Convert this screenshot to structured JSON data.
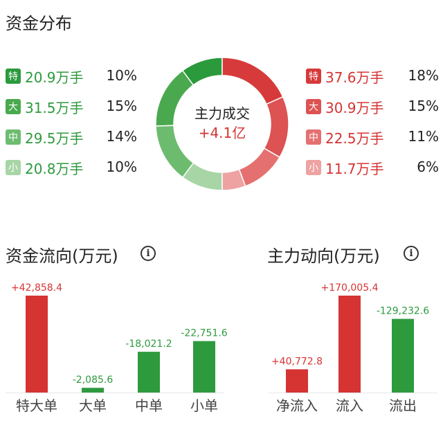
{
  "distribution": {
    "title": "资金分布",
    "center_label": "主力成交",
    "center_value": "+4.1亿",
    "outflow": [
      {
        "badge": "特",
        "amount": "20.9万手",
        "pct": "10%",
        "color": "#2a9a3c"
      },
      {
        "badge": "大",
        "amount": "31.5万手",
        "pct": "15%",
        "color": "#4aa94e"
      },
      {
        "badge": "中",
        "amount": "29.5万手",
        "pct": "14%",
        "color": "#6dbb6f"
      },
      {
        "badge": "小",
        "amount": "20.8万手",
        "pct": "10%",
        "color": "#a8d5a6"
      }
    ],
    "inflow": [
      {
        "badge": "特",
        "amount": "37.6万手",
        "pct": "18%",
        "color": "#d63a3a"
      },
      {
        "badge": "大",
        "amount": "30.9万手",
        "pct": "15%",
        "color": "#dd5252"
      },
      {
        "badge": "中",
        "amount": "22.5万手",
        "pct": "11%",
        "color": "#e57070"
      },
      {
        "badge": "小",
        "amount": "11.7万手",
        "pct": "6%",
        "color": "#eea2a2"
      }
    ]
  },
  "chart_data": [
    {
      "type": "pie",
      "title": "资金分布",
      "categories": [
        "特",
        "大",
        "中",
        "小",
        "小",
        "中",
        "大",
        "特"
      ],
      "values": [
        37.6,
        30.9,
        22.5,
        11.7,
        20.8,
        29.5,
        31.5,
        20.9
      ],
      "colors": [
        "#d63a3a",
        "#dd5252",
        "#e57070",
        "#eea2a2",
        "#a8d5a6",
        "#6dbb6f",
        "#4aa94e",
        "#2a9a3c"
      ]
    },
    {
      "type": "bar",
      "title": "资金流向(万元)",
      "categories": [
        "特大单",
        "大单",
        "中单",
        "小单"
      ],
      "values": [
        42858.4,
        -2085.6,
        -18021.2,
        -22751.6
      ],
      "labels": [
        "+42,858.4",
        "-2,085.6",
        "-18,021.2",
        "-22,751.6"
      ],
      "colors": [
        "#d63333",
        "#2e9a3e",
        "#2e9a3e",
        "#2e9a3e"
      ]
    },
    {
      "type": "bar",
      "title": "主力动向(万元)",
      "categories": [
        "净流入",
        "流入",
        "流出"
      ],
      "values": [
        40772.8,
        170005.4,
        -129232.6
      ],
      "labels": [
        "+40,772.8",
        "+170,005.4",
        "-129,232.6"
      ],
      "colors": [
        "#d63333",
        "#d63333",
        "#2e9a3e"
      ]
    }
  ],
  "colors": {
    "red": "#d63333",
    "green": "#2e9a3e",
    "axis": "#e6e6e6"
  }
}
